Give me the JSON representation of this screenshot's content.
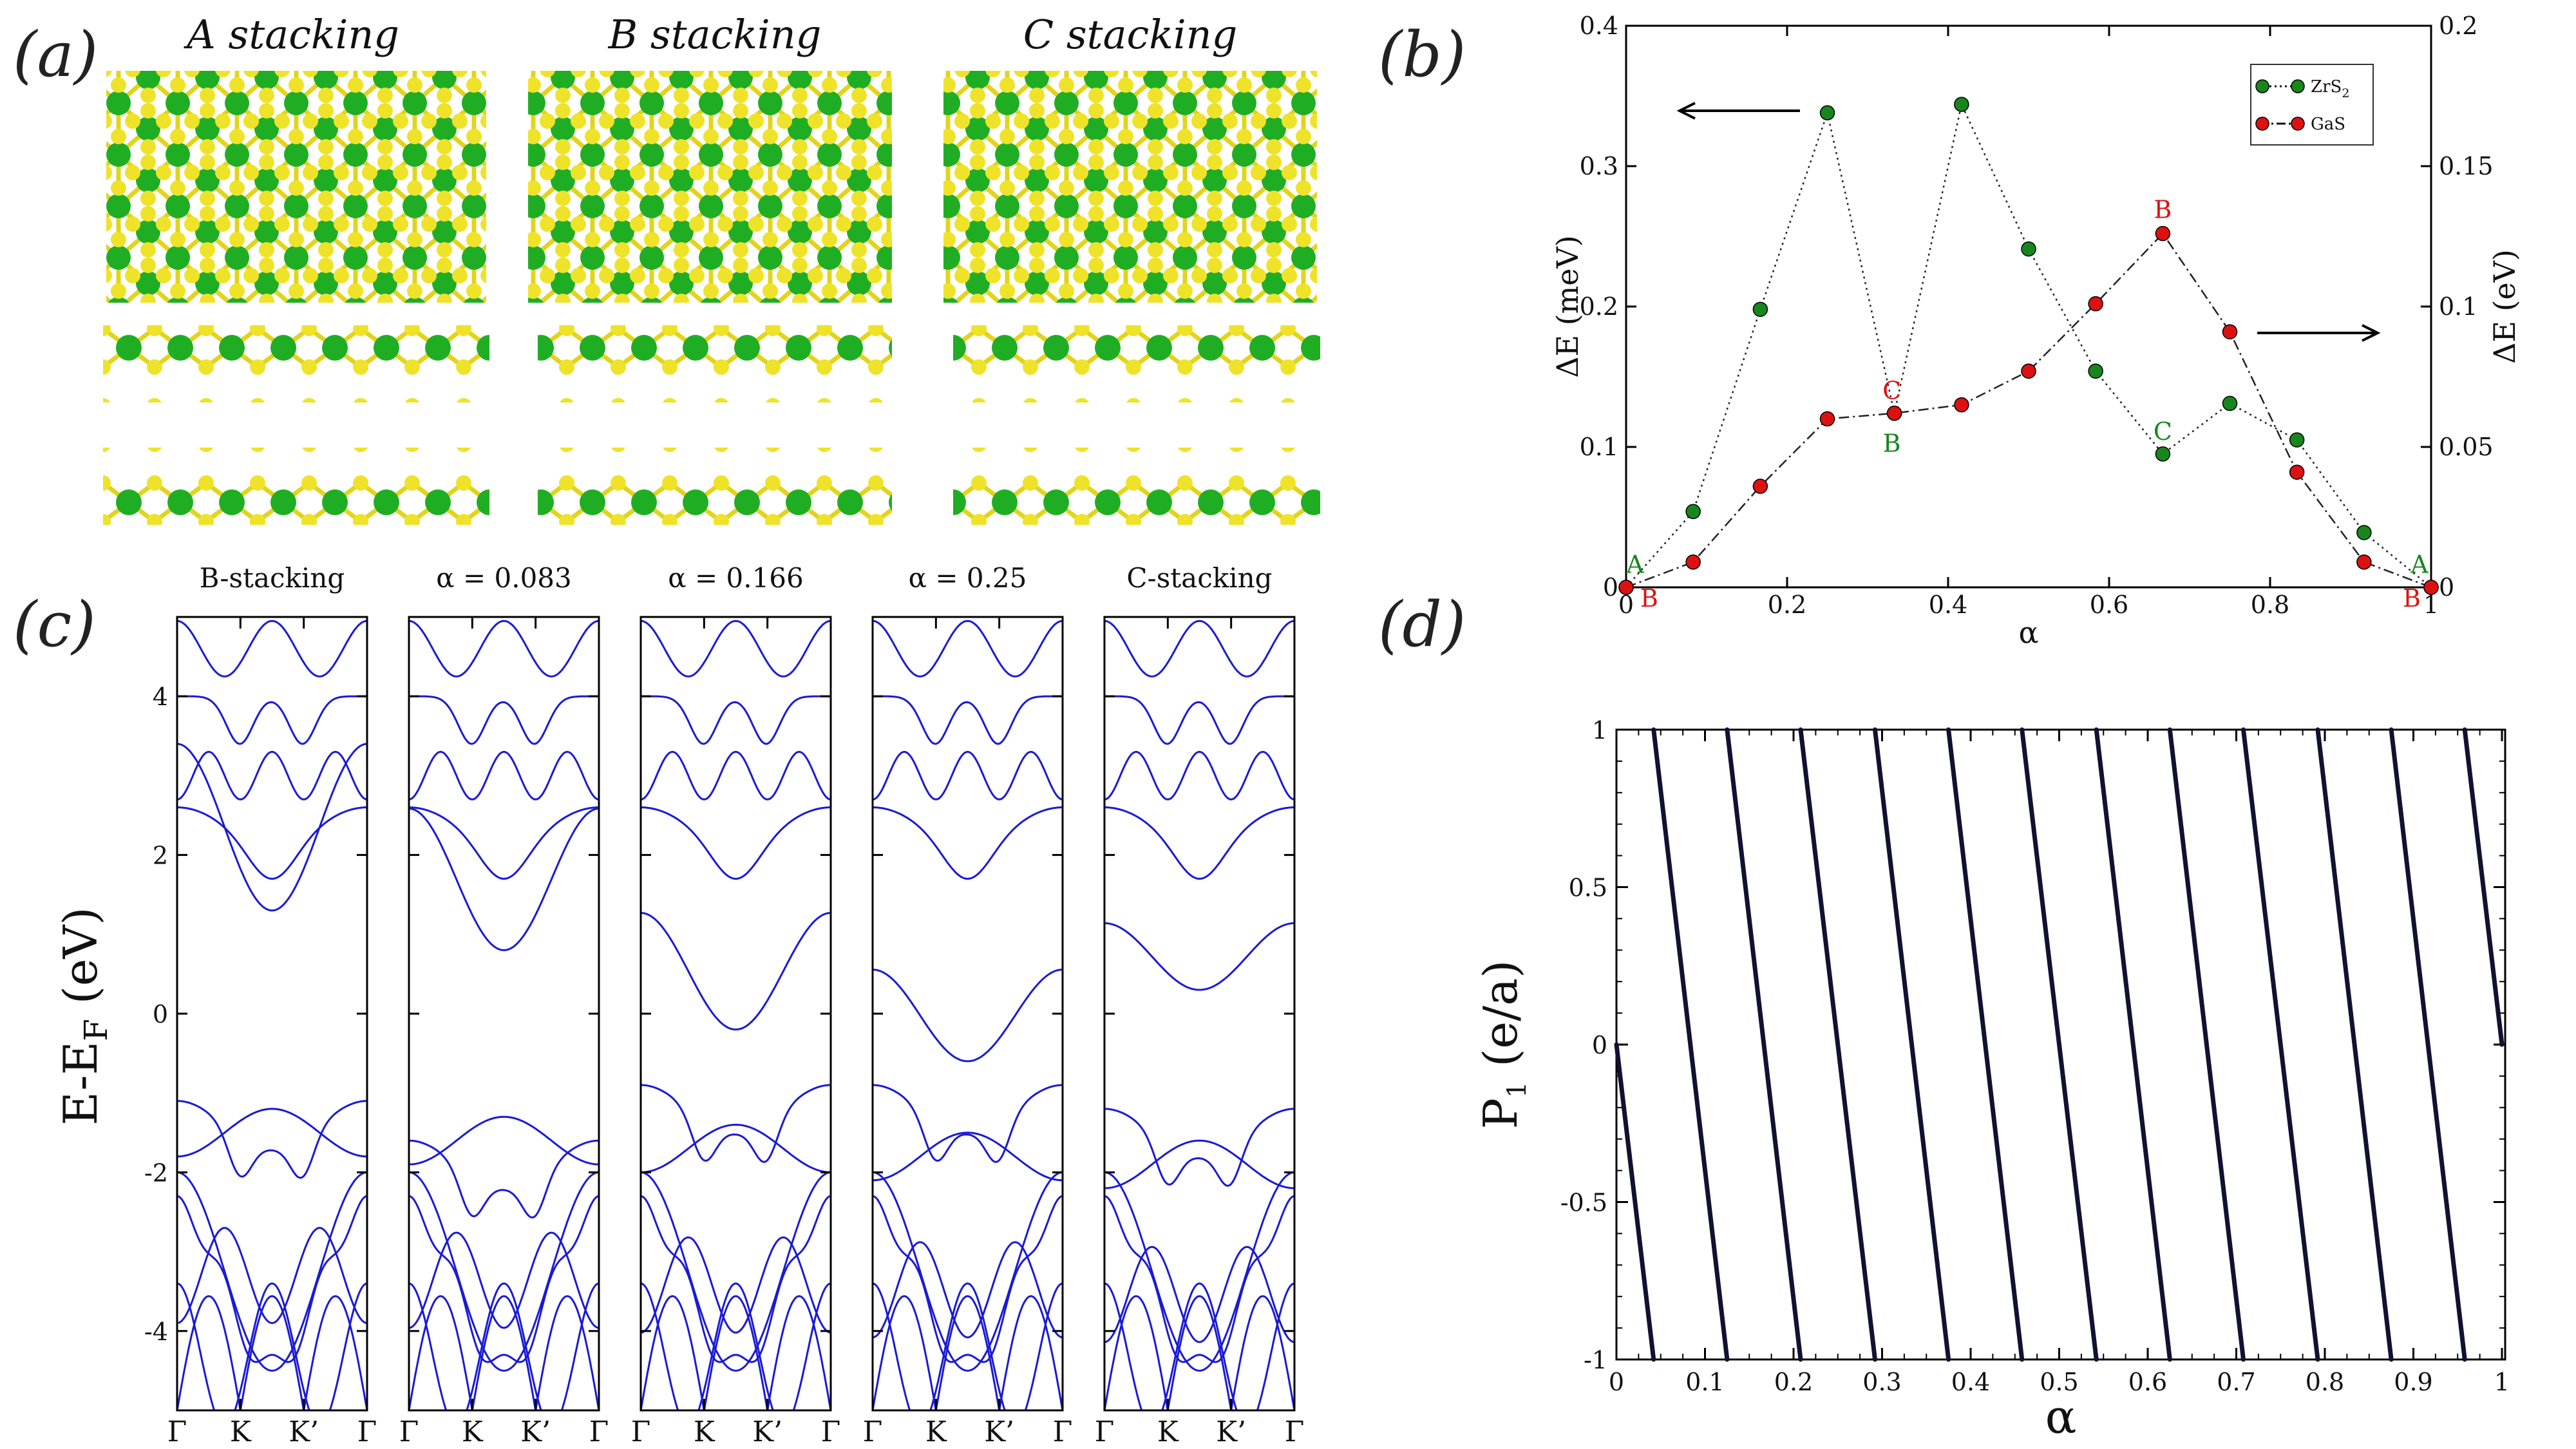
{
  "panel_labels": {
    "a": "(a)",
    "b": "(b)",
    "c": "(c)",
    "d": "(d)"
  },
  "colors": {
    "green": "#17861d",
    "red": "#dd1111",
    "blue": "#1a1ad6",
    "yellow": "#e9dd1d",
    "dark": "#111133"
  },
  "panel_a": {
    "titles": [
      "A stacking",
      "B stacking",
      "C stacking"
    ]
  },
  "chart_data": [
    {
      "id": "b",
      "type": "line",
      "title": "",
      "xlabel": "α",
      "ylabel_left": "ΔE (meV)",
      "ylabel_right": "ΔE (eV)",
      "xlim": [
        0,
        1
      ],
      "ylim_left": [
        0,
        0.4
      ],
      "ylim_right": [
        0,
        0.2
      ],
      "xticks": [
        "0",
        "0.2",
        "0.4",
        "0.6",
        "0.8",
        "1"
      ],
      "yticks_left": [
        "0",
        "0.1",
        "0.2",
        "0.3",
        "0.4"
      ],
      "yticks_right": [
        "0",
        "0.05",
        "0.1",
        "0.15",
        "0.2"
      ],
      "series": [
        {
          "name": "ZrS",
          "name_sub": "2",
          "axis": "left",
          "color": "#17861d",
          "x": [
            0,
            0.0833,
            0.1667,
            0.25,
            0.3333,
            0.4167,
            0.5,
            0.5833,
            0.6667,
            0.75,
            0.8333,
            0.9167,
            1.0
          ],
          "values": [
            0,
            0.054,
            0.198,
            0.338,
            0.124,
            0.344,
            0.241,
            0.154,
            0.095,
            0.131,
            0.105,
            0.039,
            0
          ]
        },
        {
          "name": "GaS",
          "name_sub": "",
          "axis": "right",
          "color": "#dd1111",
          "x": [
            0,
            0.0833,
            0.1667,
            0.25,
            0.3333,
            0.4167,
            0.5,
            0.5833,
            0.6667,
            0.75,
            0.8333,
            0.9167,
            1.0
          ],
          "values": [
            0,
            0.009,
            0.036,
            0.06,
            0.062,
            0.065,
            0.077,
            0.101,
            0.126,
            0.091,
            0.041,
            0.009,
            0
          ]
        }
      ],
      "annotations": [
        {
          "text": "A",
          "color": "green",
          "x": 0,
          "y": 0.002,
          "axis": "left",
          "dx": 14,
          "dy": -18
        },
        {
          "text": "B",
          "color": "red",
          "x": 0,
          "y": 0,
          "axis": "left",
          "dx": 36,
          "dy": 30
        },
        {
          "text": "C",
          "color": "red",
          "x": 0.3333,
          "y": 0.124,
          "axis": "left",
          "dx": -4,
          "dy": -22
        },
        {
          "text": "B",
          "color": "green",
          "x": 0.3333,
          "y": 0.124,
          "axis": "left",
          "dx": -4,
          "dy": 60
        },
        {
          "text": "B",
          "color": "red",
          "x": 0.6667,
          "y": 0.126,
          "axis": "right",
          "dx": 0,
          "dy": -24
        },
        {
          "text": "C",
          "color": "green",
          "x": 0.6667,
          "y": 0.095,
          "axis": "left",
          "dx": 0,
          "dy": -22
        },
        {
          "text": "A",
          "color": "green",
          "x": 1,
          "y": 0.002,
          "axis": "left",
          "dx": -18,
          "dy": -18
        },
        {
          "text": "B",
          "color": "red",
          "x": 1,
          "y": 0,
          "axis": "left",
          "dx": -30,
          "dy": 30
        }
      ]
    },
    {
      "id": "c",
      "type": "line",
      "title": "",
      "ylabel": "E-E",
      "ylabel_sub": "F",
      "ylabel_unit": " (eV)",
      "ylim": [
        -5,
        5
      ],
      "yticks": [
        "-4",
        "-2",
        "0",
        "2",
        "4"
      ],
      "kpoint_labels": [
        "Γ",
        "K",
        "K’",
        "Γ"
      ],
      "panels": [
        "B-stacking",
        "α = 0.083",
        "α = 0.166",
        "α = 0.25",
        "C-stacking"
      ]
    },
    {
      "id": "d",
      "type": "line",
      "xlabel": "α",
      "ylabel": "P",
      "ylabel_sub": "1",
      "ylabel_unit": "  (e/a)",
      "xlim": [
        0,
        1
      ],
      "ylim": [
        -1,
        1
      ],
      "xticks": [
        "0",
        "0.1",
        "0.2",
        "0.3",
        "0.4",
        "0.5",
        "0.6",
        "0.7",
        "0.8",
        "0.9",
        "1"
      ],
      "yticks": [
        "-1",
        "-0.5",
        "0",
        "0.5",
        "1"
      ],
      "segments": [
        [
          0.0,
          0.0,
          0.042,
          -1.0
        ],
        [
          0.042,
          1.0,
          0.125,
          -1.0
        ],
        [
          0.125,
          1.0,
          0.208,
          -1.0
        ],
        [
          0.208,
          1.0,
          0.292,
          -1.0
        ],
        [
          0.292,
          1.0,
          0.375,
          -1.0
        ],
        [
          0.375,
          1.0,
          0.458,
          -1.0
        ],
        [
          0.458,
          1.0,
          0.542,
          -1.0
        ],
        [
          0.542,
          1.0,
          0.625,
          -1.0
        ],
        [
          0.625,
          1.0,
          0.708,
          -1.0
        ],
        [
          0.708,
          1.0,
          0.792,
          -1.0
        ],
        [
          0.792,
          1.0,
          0.875,
          -1.0
        ],
        [
          0.875,
          1.0,
          0.958,
          -1.0
        ],
        [
          0.958,
          1.0,
          1.0,
          0.0
        ]
      ]
    }
  ]
}
